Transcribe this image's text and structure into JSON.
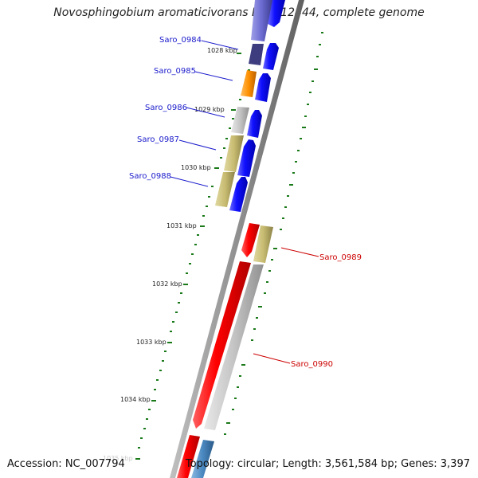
{
  "title": "Novosphingobium aromaticivorans DSM 12444, complete genome",
  "accession": "Accession: NC_007794",
  "topology": "Topology: circular; Length: 3,561,584 bp; Genes: 3,397",
  "kbp_ticks": [
    "1028 kbp",
    "1029 kbp",
    "1030 kbp",
    "1031 kbp",
    "1032 kbp",
    "1033 kbp",
    "1034 kbp",
    "1035 kbp"
  ],
  "genes_left": [
    "Saro_0984",
    "Saro_0985",
    "Saro_0986",
    "Saro_0987",
    "Saro_0988"
  ],
  "genes_right": [
    "Saro_0989",
    "Saro_0990"
  ],
  "colors": {
    "left_label": "#1a1acc",
    "right_label": "#cc0000",
    "tick": "#1a7a1a",
    "backbone": "#808080"
  }
}
